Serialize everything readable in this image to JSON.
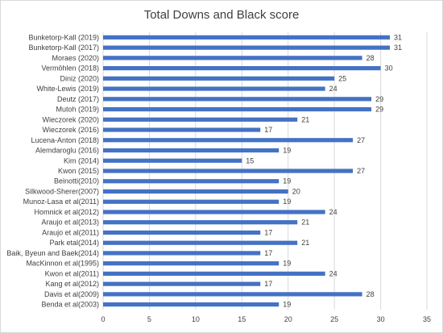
{
  "chart_data": {
    "type": "bar",
    "orientation": "horizontal",
    "title": "Total Downs and Black score",
    "xlabel": "",
    "ylabel": "",
    "xlim": [
      0,
      35
    ],
    "xticks": [
      0,
      5,
      10,
      15,
      20,
      25,
      30,
      35
    ],
    "grid": true,
    "legend": "none",
    "bar_color": "#4472c4",
    "categories": [
      "Bunketorp-Kall (2019)",
      "Bunketorp-Kall (2017)",
      "Moraes (2020)",
      "Vermöhlen (2018)",
      "Diniz (2020)",
      "White-Lewis (2019)",
      "Deutz (2017)",
      "Mutoh (2019)",
      "Wieczorek (2020)",
      "Wieczorek (2016)",
      "Lucena-Anton (2018)",
      "Alemdaroglu (2016)",
      "Kim (2014)",
      "Kwon (2015)",
      "Beinotti(2010)",
      "Silkwood-Sherer(2007)",
      "Munoz-Lasa et al(2011)",
      "Homnick et al(2012)",
      "Araujo et al(2013)",
      "Araujo et al(2011)",
      "Park etal(2014)",
      "Baik, Byeun and Baek(2014)",
      "MacKinnon et al(1995)",
      "Kwon et al(2011)",
      "Kang et al(2012)",
      "Davis et al(2009)",
      "Benda et al(2003)"
    ],
    "values": [
      31,
      31,
      28,
      30,
      25,
      24,
      29,
      29,
      21,
      17,
      27,
      19,
      15,
      27,
      19,
      20,
      19,
      24,
      21,
      17,
      21,
      17,
      19,
      24,
      17,
      28,
      19
    ]
  }
}
